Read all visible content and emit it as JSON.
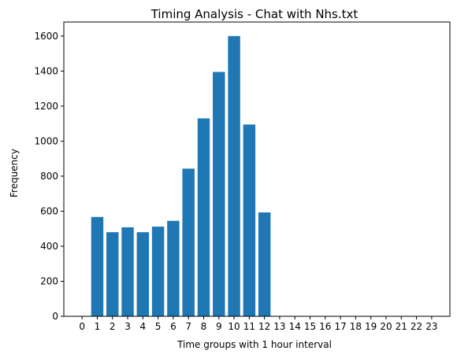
{
  "chart_data": {
    "type": "bar",
    "title": "Timing Analysis - Chat with Nhs.txt",
    "xlabel": "Time groups with 1 hour interval",
    "ylabel": "Frequency",
    "categories": [
      "0",
      "1",
      "2",
      "3",
      "4",
      "5",
      "6",
      "7",
      "8",
      "9",
      "10",
      "11",
      "12",
      "13",
      "14",
      "15",
      "16",
      "17",
      "18",
      "19",
      "20",
      "21",
      "22",
      "23"
    ],
    "values": [
      0,
      567,
      480,
      508,
      480,
      512,
      545,
      843,
      1130,
      1395,
      1600,
      1095,
      593,
      0,
      0,
      0,
      0,
      0,
      0,
      0,
      0,
      0,
      0,
      0
    ],
    "ylim": [
      0,
      1680
    ],
    "yticks": [
      0,
      200,
      400,
      600,
      800,
      1000,
      1200,
      1400,
      1600
    ],
    "xlim": [
      -1.2,
      24.2
    ],
    "bar_color": "#1f77b4",
    "grid": false,
    "legend": "none"
  }
}
